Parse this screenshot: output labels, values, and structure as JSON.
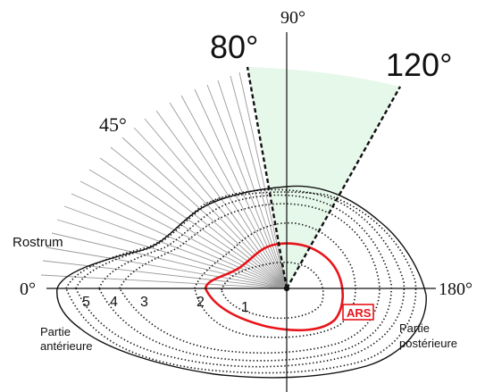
{
  "axis_labels": {
    "deg0": "0°",
    "deg45": "45°",
    "deg90": "90°",
    "deg180": "180°"
  },
  "measurement_angles": {
    "start": "80°",
    "end": "120°"
  },
  "side_labels": {
    "rostrum": "Rostrum",
    "anterior_line1": "Partie",
    "anterior_line2": "antérieure",
    "posterior_line1": "Partie",
    "posterior_line2": "postérieure"
  },
  "growth_rings": [
    "1",
    "2",
    "3",
    "4",
    "5"
  ],
  "ars_label": "ARS",
  "colors": {
    "sector_fill": "#e6f8ea",
    "ars_red": "#e8141a",
    "outline": "#111111",
    "radial_lines": "#9a9a9a"
  }
}
